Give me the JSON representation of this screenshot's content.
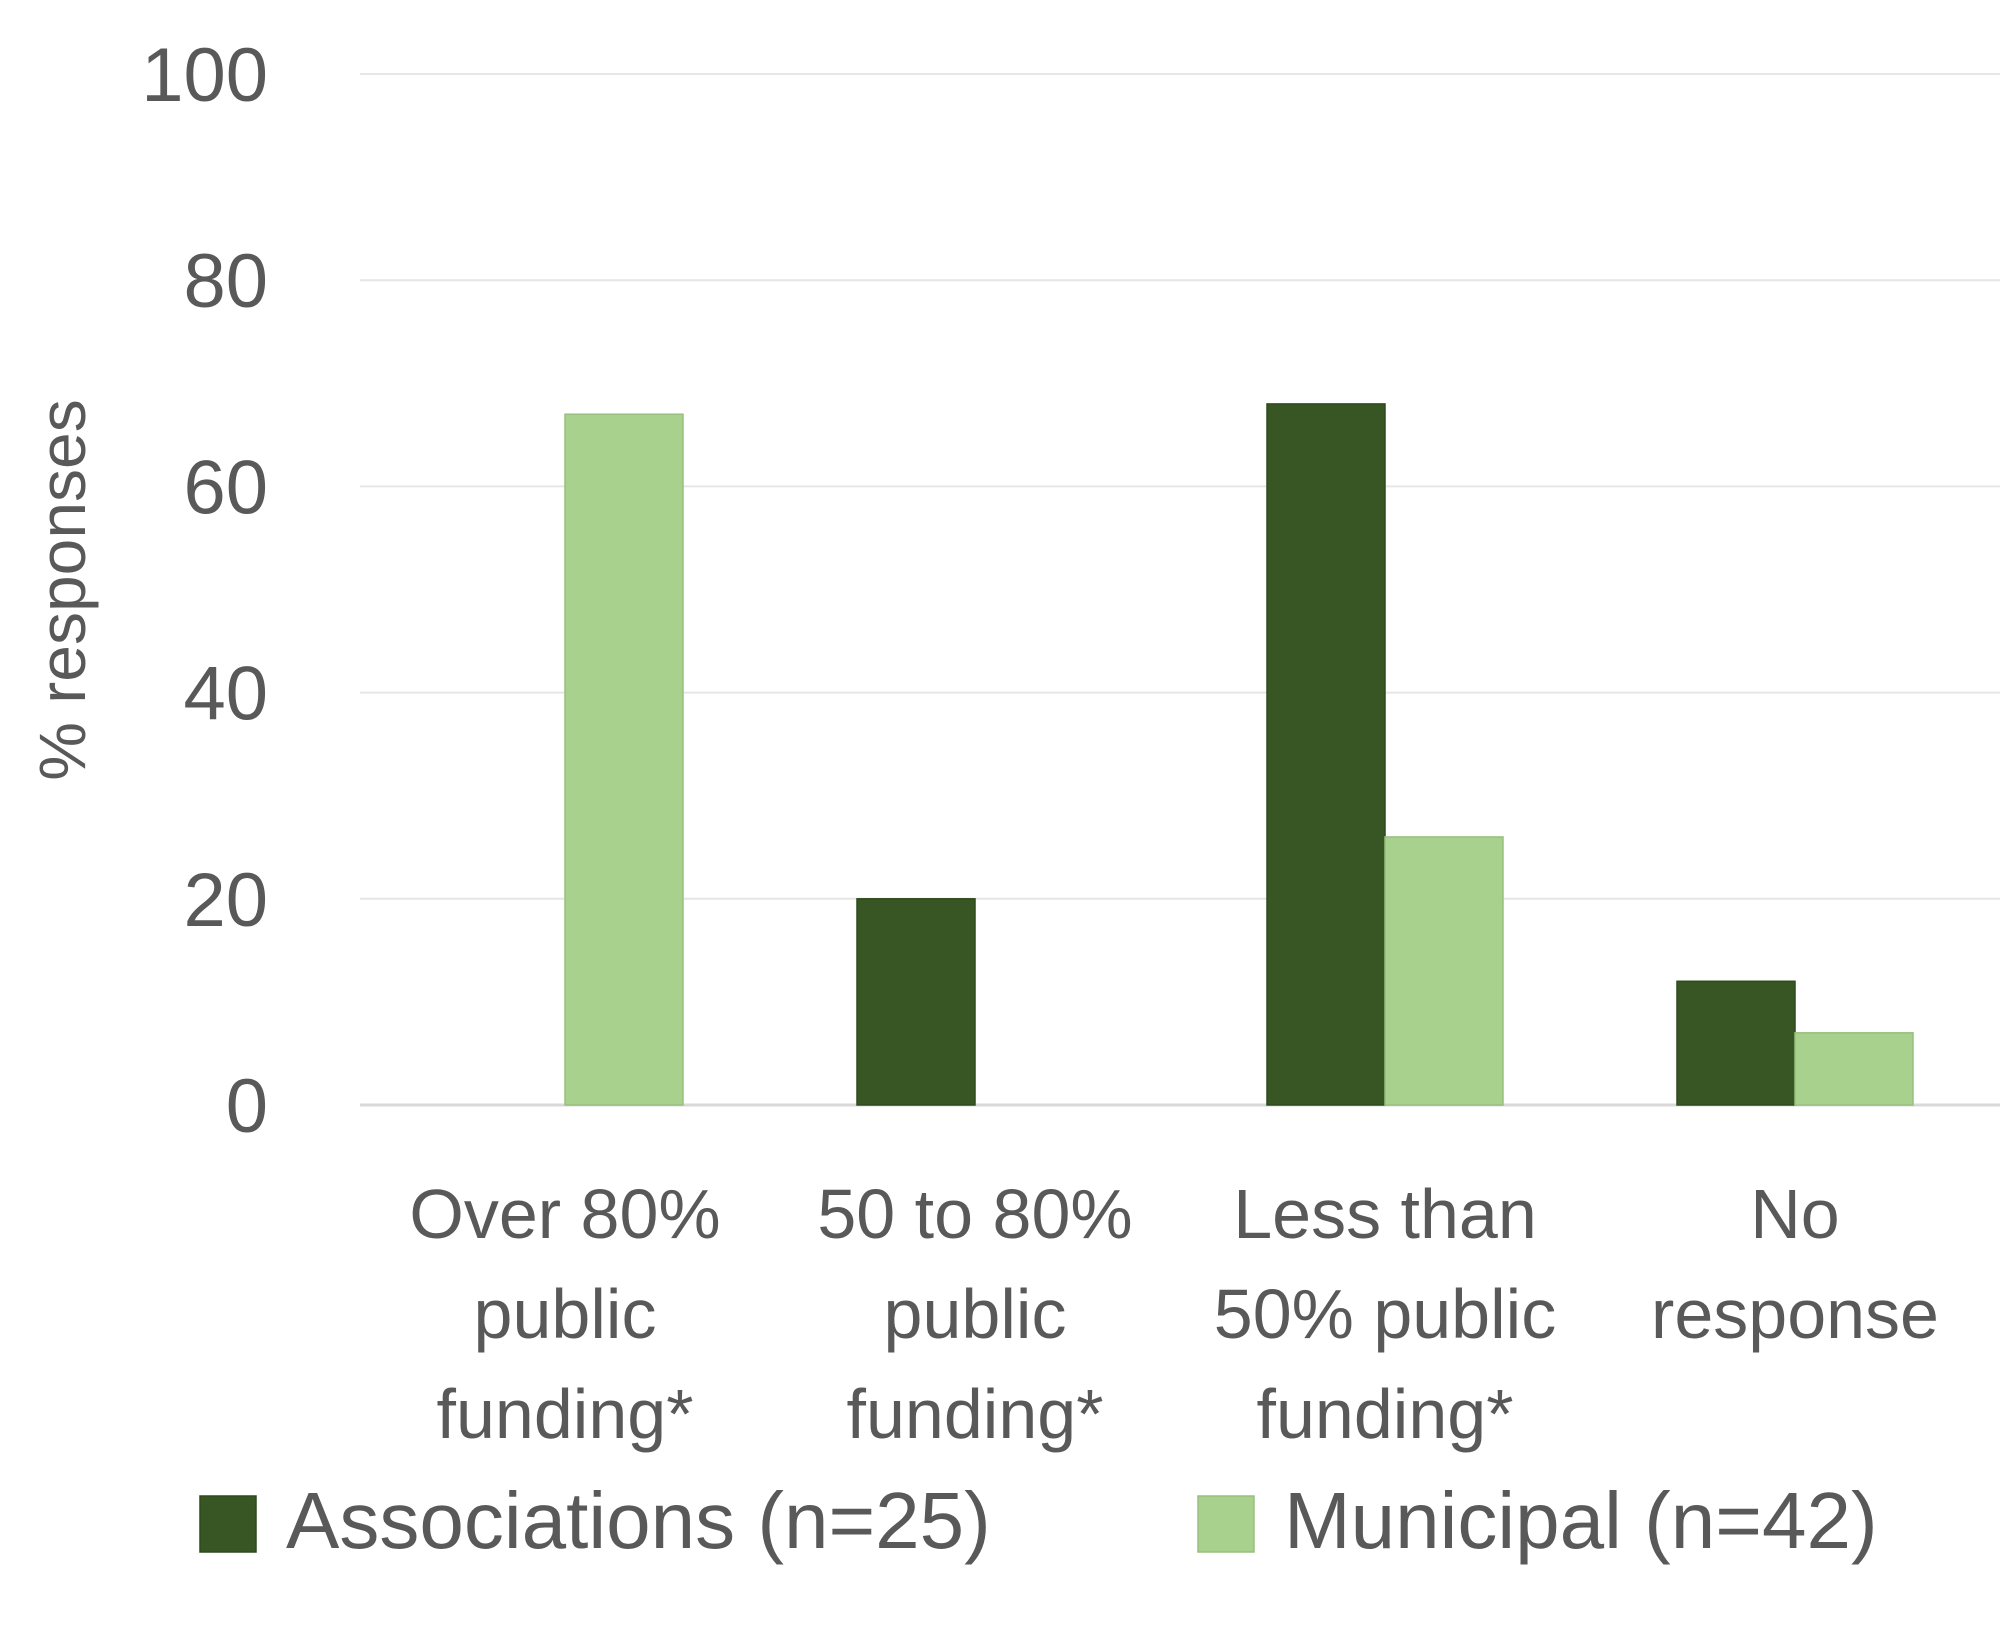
{
  "chart_data": {
    "type": "bar",
    "title": "",
    "xlabel": "",
    "ylabel": "% responses",
    "ylim": [
      0,
      100
    ],
    "yticks": [
      0,
      20,
      40,
      60,
      80,
      100
    ],
    "grid": true,
    "legend_position": "bottom",
    "categories": [
      [
        "Over 80%",
        "public",
        "funding*"
      ],
      [
        "50 to 80%",
        "public",
        "funding*"
      ],
      [
        "Less than",
        "50% public",
        "funding*"
      ],
      [
        "No",
        "response"
      ]
    ],
    "series": [
      {
        "name": "Associations (n=25)",
        "color": "#375623",
        "values": [
          0,
          20,
          68,
          12
        ]
      },
      {
        "name": "Municipal (n=42)",
        "color": "#a9d18e",
        "values": [
          67,
          0,
          26,
          7
        ]
      }
    ]
  }
}
